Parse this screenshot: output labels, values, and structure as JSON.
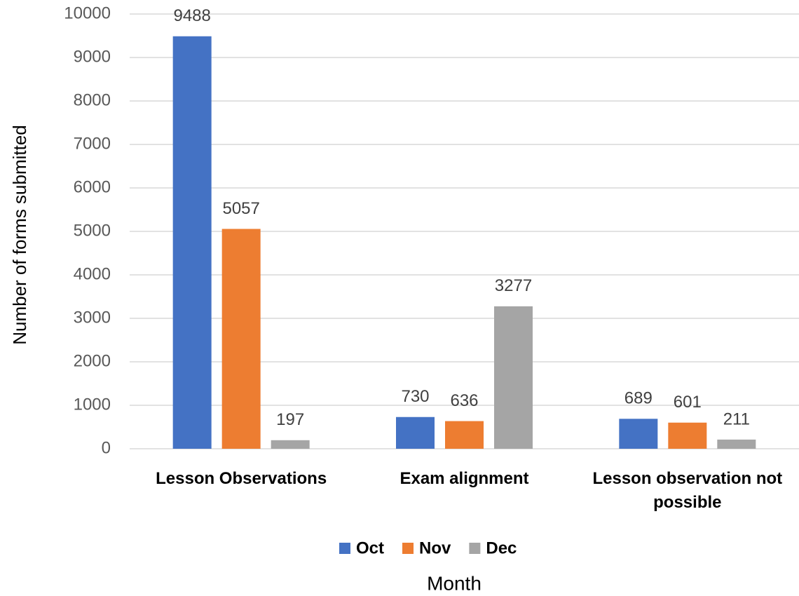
{
  "chart_data": {
    "type": "bar",
    "categories": [
      "Lesson Observations",
      "Exam alignment",
      "Lesson observation not possible"
    ],
    "series": [
      {
        "name": "Oct",
        "color": "#4472c4",
        "values": [
          9488,
          730,
          689
        ]
      },
      {
        "name": "Nov",
        "color": "#ed7d31",
        "values": [
          5057,
          636,
          601
        ]
      },
      {
        "name": "Dec",
        "color": "#a5a5a5",
        "values": [
          197,
          3277,
          211
        ]
      }
    ],
    "ylim": [
      0,
      10000
    ],
    "yticks": [
      0,
      1000,
      2000,
      3000,
      4000,
      5000,
      6000,
      7000,
      8000,
      9000,
      10000
    ],
    "grid": true,
    "legend": "bottom",
    "xlabel": "Month",
    "ylabel": "Number of forms submitted"
  }
}
